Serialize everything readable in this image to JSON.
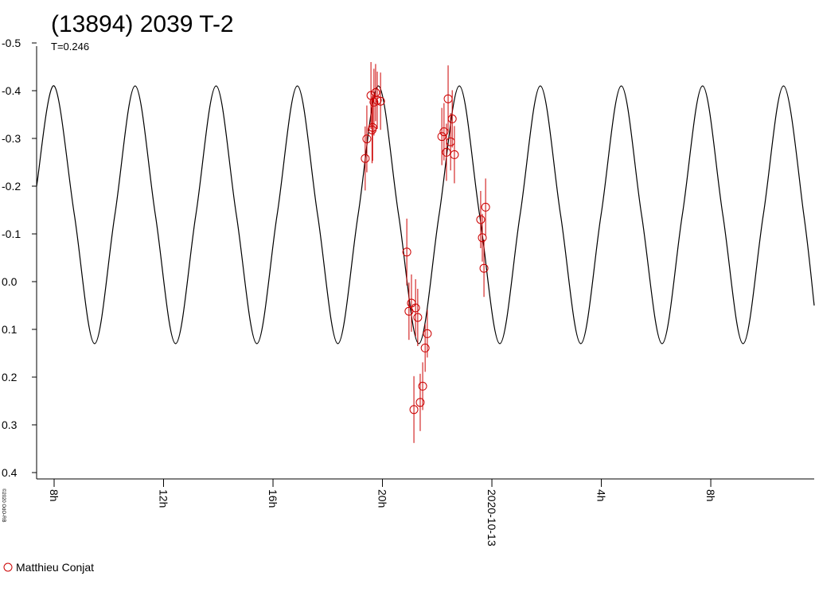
{
  "chart_data": {
    "type": "scatter",
    "title": "(13894) 2039 T-2",
    "subtitle": "T=0.246",
    "credit": "©2020 OdO-RB",
    "ylim": [
      -0.5,
      0.4
    ],
    "y_inverted": true,
    "yticks": [
      -0.5,
      -0.4,
      -0.3,
      -0.2,
      -0.1,
      {
        "value": 0,
        "label": "0.0"
      },
      0.1,
      0.2,
      0.3,
      0.4
    ],
    "xlim": [
      7.36,
      35.78
    ],
    "xticks": [
      {
        "value": 8,
        "label": "8h"
      },
      {
        "value": 12,
        "label": "12h"
      },
      {
        "value": 16,
        "label": "16h"
      },
      {
        "value": 20,
        "label": "20h"
      },
      {
        "value": 24,
        "label": "2020-10-13"
      },
      {
        "value": 28,
        "label": "4h"
      },
      {
        "value": 32,
        "label": "8h"
      }
    ],
    "curve": {
      "color": "#000000",
      "x": [
        7.36,
        8.0,
        8.74,
        9.48,
        10.22,
        10.96,
        11.7,
        12.44,
        13.18,
        13.92,
        14.66,
        15.41,
        16.15,
        16.89,
        17.63,
        18.37,
        19.11,
        19.85,
        20.59,
        21.33,
        22.07,
        22.81,
        23.55,
        24.29,
        25.03,
        25.77,
        26.51,
        27.25,
        27.99,
        28.73,
        29.47,
        30.22,
        30.96,
        31.7,
        32.44,
        33.18,
        33.92,
        34.66,
        35.4,
        35.78
      ],
      "values": [
        -0.2,
        -0.41,
        -0.14,
        0.13,
        -0.14,
        -0.41,
        -0.14,
        0.13,
        -0.14,
        -0.41,
        -0.14,
        0.13,
        -0.14,
        -0.41,
        -0.14,
        0.13,
        -0.14,
        -0.41,
        -0.14,
        0.13,
        -0.14,
        -0.41,
        -0.14,
        0.13,
        -0.14,
        -0.41,
        -0.14,
        0.13,
        -0.14,
        -0.41,
        -0.14,
        0.13,
        -0.14,
        -0.41,
        -0.14,
        0.13,
        -0.14,
        -0.41,
        -0.14,
        0.05
      ]
    },
    "series": [
      {
        "name": "Matthieu Conjat",
        "color": "#cc0000",
        "x": [
          19.37,
          19.43,
          19.58,
          19.62,
          19.64,
          19.69,
          19.75,
          19.81,
          19.93,
          20.89,
          20.97,
          21.06,
          21.15,
          21.21,
          21.29,
          21.38,
          21.47,
          21.56,
          21.64,
          22.17,
          22.25,
          22.34,
          22.4,
          22.49,
          22.55,
          22.63,
          23.59,
          23.65,
          23.71,
          23.77
        ],
        "values": [
          -0.258,
          -0.299,
          -0.39,
          -0.318,
          -0.323,
          -0.376,
          -0.396,
          -0.38,
          -0.378,
          -0.062,
          0.062,
          0.045,
          0.268,
          0.055,
          0.075,
          0.253,
          0.219,
          0.139,
          0.109,
          -0.304,
          -0.314,
          -0.271,
          -0.383,
          -0.293,
          -0.341,
          -0.266,
          -0.13,
          -0.092,
          -0.028,
          -0.156
        ],
        "errors": [
          0.067,
          0.07,
          0.07,
          0.07,
          0.07,
          0.07,
          0.06,
          0.06,
          0.06,
          0.07,
          0.06,
          0.06,
          0.07,
          0.06,
          0.06,
          0.06,
          0.05,
          0.05,
          0.05,
          0.06,
          0.06,
          0.06,
          0.07,
          0.06,
          0.06,
          0.06,
          0.06,
          0.05,
          0.06,
          0.06
        ]
      }
    ]
  }
}
